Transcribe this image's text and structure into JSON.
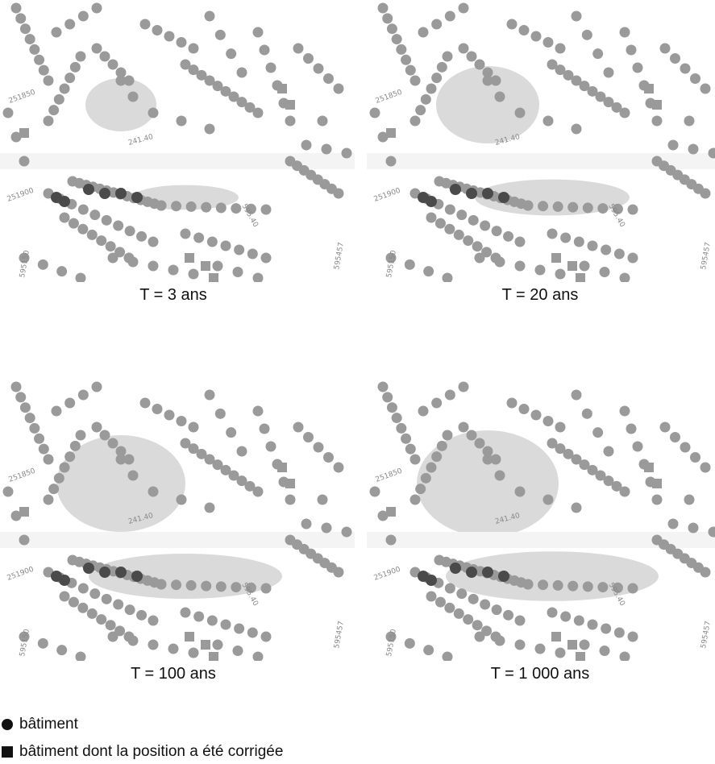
{
  "panels": [
    {
      "caption": "T = 3 ans"
    },
    {
      "caption": "T = 20 ans"
    },
    {
      "caption": "T = 100 ans"
    },
    {
      "caption": "T = 1 000 ans"
    }
  ],
  "map_labels": {
    "road": "241.40",
    "grid_a": "251850",
    "grid_b": "251900",
    "grid_c": "595.40",
    "grid_d": "595150",
    "grid_e": "595457"
  },
  "legend": [
    {
      "symbol": "circle-icon",
      "label": "bâtiment"
    },
    {
      "symbol": "square-icon",
      "label": "bâtiment dont la position a été corrigée"
    }
  ],
  "colors": {
    "building_light": "#9a9a9a",
    "building_dark": "#4a4a4a",
    "flood_zone": "#d6d6d6",
    "legend_symbol": "#111111"
  }
}
